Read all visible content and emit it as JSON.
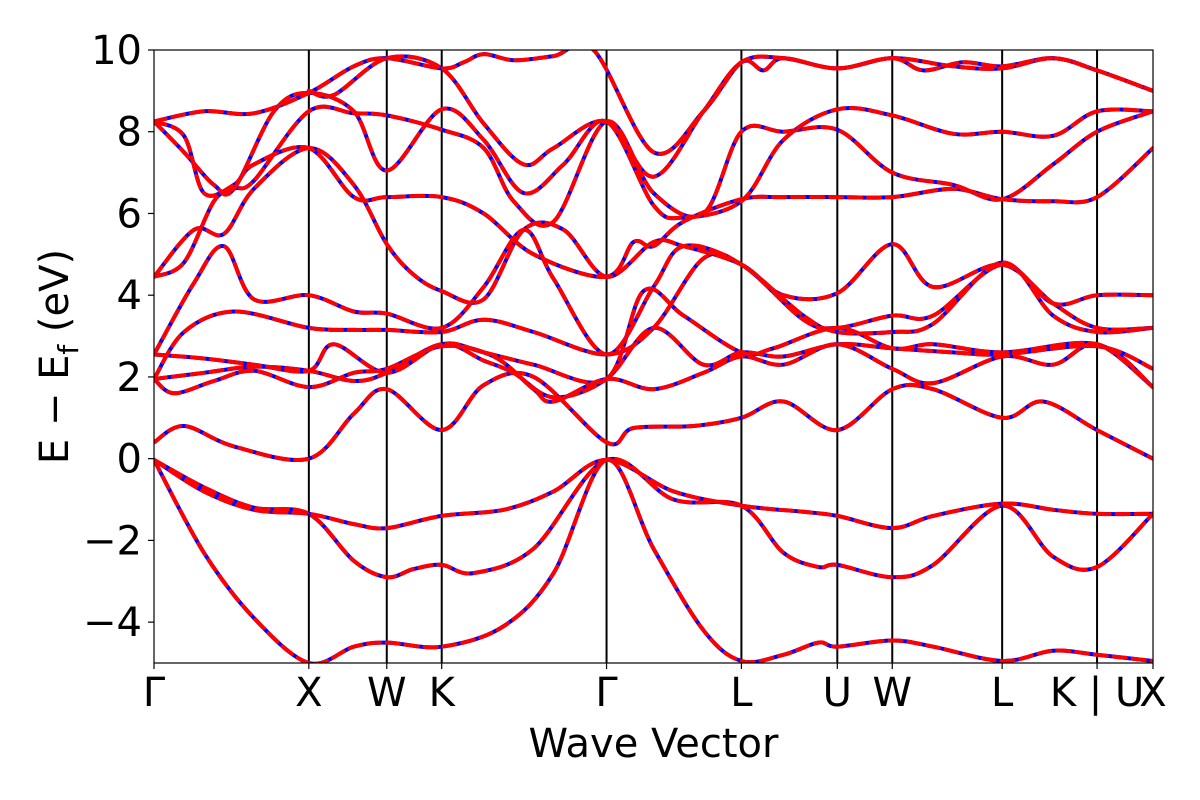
{
  "chart_data": {
    "type": "line",
    "title": "",
    "xlabel": "Wave Vector",
    "ylabel": "E − E",
    "ylabel_subscript": "f",
    "ylabel_unit": "(eV)",
    "ylim": [
      -5,
      10
    ],
    "xlim": [
      0,
      1
    ],
    "yticks": [
      {
        "value": -4,
        "label": "−4"
      },
      {
        "value": -2,
        "label": "−2"
      },
      {
        "value": 0,
        "label": "0"
      },
      {
        "value": 2,
        "label": "2"
      },
      {
        "value": 4,
        "label": "4"
      },
      {
        "value": 6,
        "label": "6"
      },
      {
        "value": 8,
        "label": "8"
      },
      {
        "value": 10,
        "label": "10"
      }
    ],
    "kpoints": [
      {
        "label": "Γ",
        "x": 0.0,
        "line": false
      },
      {
        "label": "X",
        "x": 0.155,
        "line": true
      },
      {
        "label": "W",
        "x": 0.233,
        "line": true
      },
      {
        "label": "K",
        "x": 0.288,
        "line": true
      },
      {
        "label": "Γ",
        "x": 0.453,
        "line": true
      },
      {
        "label": "L",
        "x": 0.588,
        "line": true
      },
      {
        "label": "U",
        "x": 0.684,
        "line": true
      },
      {
        "label": "W",
        "x": 0.739,
        "line": true
      },
      {
        "label": "L",
        "x": 0.849,
        "line": true
      },
      {
        "label": "K | U",
        "x": 0.944,
        "line": true
      },
      {
        "label": "X",
        "x": 1.0,
        "line": false
      }
    ],
    "series_styles": [
      {
        "name": "",
        "color": "#0000ff",
        "dash": "solid"
      },
      {
        "name": "",
        "color": "#ff0000",
        "dash": "dashed"
      }
    ],
    "bands": [
      [
        [
          0,
          -0.03
        ],
        [
          0.05,
          -2.3
        ],
        [
          0.1,
          -3.9
        ],
        [
          0.155,
          -5.0
        ],
        [
          0.2,
          -4.6
        ],
        [
          0.233,
          -4.5
        ],
        [
          0.288,
          -4.6
        ],
        [
          0.35,
          -4.1
        ],
        [
          0.4,
          -2.8
        ],
        [
          0.453,
          -0.03
        ],
        [
          0.5,
          -2.2
        ],
        [
          0.55,
          -4.2
        ],
        [
          0.588,
          -4.95
        ],
        [
          0.63,
          -4.8
        ],
        [
          0.665,
          -4.5
        ],
        [
          0.684,
          -4.6
        ],
        [
          0.739,
          -4.45
        ],
        [
          0.78,
          -4.6
        ],
        [
          0.849,
          -4.95
        ],
        [
          0.9,
          -4.7
        ],
        [
          0.944,
          -4.8
        ],
        [
          1.0,
          -4.95
        ]
      ],
      [
        [
          0,
          -0.03
        ],
        [
          0.05,
          -0.7
        ],
        [
          0.1,
          -1.2
        ],
        [
          0.155,
          -1.35
        ],
        [
          0.2,
          -2.5
        ],
        [
          0.233,
          -2.9
        ],
        [
          0.26,
          -2.7
        ],
        [
          0.288,
          -2.6
        ],
        [
          0.32,
          -2.8
        ],
        [
          0.38,
          -2.2
        ],
        [
          0.453,
          -0.03
        ],
        [
          0.52,
          -1.0
        ],
        [
          0.588,
          -1.15
        ],
        [
          0.63,
          -2.3
        ],
        [
          0.665,
          -2.65
        ],
        [
          0.684,
          -2.6
        ],
        [
          0.739,
          -2.9
        ],
        [
          0.78,
          -2.6
        ],
        [
          0.849,
          -1.15
        ],
        [
          0.9,
          -2.4
        ],
        [
          0.944,
          -2.65
        ],
        [
          1.0,
          -1.35
        ]
      ],
      [
        [
          0,
          -0.03
        ],
        [
          0.05,
          -0.8
        ],
        [
          0.1,
          -1.25
        ],
        [
          0.155,
          -1.35
        ],
        [
          0.2,
          -1.6
        ],
        [
          0.233,
          -1.7
        ],
        [
          0.288,
          -1.4
        ],
        [
          0.35,
          -1.25
        ],
        [
          0.4,
          -0.8
        ],
        [
          0.453,
          -0.03
        ],
        [
          0.52,
          -0.8
        ],
        [
          0.588,
          -1.15
        ],
        [
          0.65,
          -1.3
        ],
        [
          0.684,
          -1.4
        ],
        [
          0.739,
          -1.7
        ],
        [
          0.78,
          -1.4
        ],
        [
          0.849,
          -1.1
        ],
        [
          0.9,
          -1.25
        ],
        [
          0.944,
          -1.35
        ],
        [
          1.0,
          -1.35
        ]
      ],
      [
        [
          0,
          0.4
        ],
        [
          0.03,
          0.8
        ],
        [
          0.08,
          0.3
        ],
        [
          0.155,
          0.0
        ],
        [
          0.2,
          1.1
        ],
        [
          0.233,
          1.7
        ],
        [
          0.288,
          0.7
        ],
        [
          0.33,
          1.8
        ],
        [
          0.38,
          2.0
        ],
        [
          0.453,
          0.4
        ],
        [
          0.48,
          0.75
        ],
        [
          0.54,
          0.8
        ],
        [
          0.588,
          1.0
        ],
        [
          0.63,
          1.4
        ],
        [
          0.684,
          0.7
        ],
        [
          0.739,
          1.7
        ],
        [
          0.78,
          1.7
        ],
        [
          0.849,
          1.0
        ],
        [
          0.89,
          1.4
        ],
        [
          0.944,
          0.7
        ],
        [
          1.0,
          0.0
        ]
      ],
      [
        [
          0,
          1.95
        ],
        [
          0.02,
          1.6
        ],
        [
          0.06,
          1.9
        ],
        [
          0.1,
          2.15
        ],
        [
          0.155,
          1.75
        ],
        [
          0.2,
          2.1
        ],
        [
          0.233,
          2.2
        ],
        [
          0.288,
          2.75
        ],
        [
          0.34,
          2.5
        ],
        [
          0.38,
          1.7
        ],
        [
          0.4,
          1.4
        ],
        [
          0.453,
          1.95
        ],
        [
          0.5,
          1.7
        ],
        [
          0.55,
          2.1
        ],
        [
          0.588,
          2.5
        ],
        [
          0.63,
          2.3
        ],
        [
          0.684,
          2.8
        ],
        [
          0.739,
          2.2
        ],
        [
          0.78,
          1.85
        ],
        [
          0.849,
          2.5
        ],
        [
          0.9,
          2.3
        ],
        [
          0.944,
          2.8
        ],
        [
          1.0,
          1.75
        ]
      ],
      [
        [
          0,
          1.95
        ],
        [
          0.05,
          2.1
        ],
        [
          0.1,
          2.25
        ],
        [
          0.155,
          2.15
        ],
        [
          0.2,
          1.9
        ],
        [
          0.233,
          2.1
        ],
        [
          0.288,
          2.8
        ],
        [
          0.33,
          2.4
        ],
        [
          0.36,
          2.1
        ],
        [
          0.4,
          1.5
        ],
        [
          0.453,
          1.95
        ],
        [
          0.5,
          3.2
        ],
        [
          0.55,
          2.3
        ],
        [
          0.588,
          2.6
        ],
        [
          0.63,
          2.5
        ],
        [
          0.684,
          2.8
        ],
        [
          0.739,
          2.7
        ],
        [
          0.8,
          2.6
        ],
        [
          0.849,
          2.55
        ],
        [
          0.944,
          2.75
        ],
        [
          1.0,
          2.2
        ]
      ],
      [
        [
          0,
          2.55
        ],
        [
          0.05,
          2.45
        ],
        [
          0.1,
          2.3
        ],
        [
          0.155,
          2.15
        ],
        [
          0.18,
          2.8
        ],
        [
          0.233,
          2.1
        ],
        [
          0.288,
          2.8
        ],
        [
          0.33,
          2.6
        ],
        [
          0.38,
          2.3
        ],
        [
          0.453,
          1.95
        ],
        [
          0.49,
          4.1
        ],
        [
          0.53,
          3.5
        ],
        [
          0.588,
          2.6
        ],
        [
          0.62,
          2.7
        ],
        [
          0.684,
          3.2
        ],
        [
          0.739,
          2.7
        ],
        [
          0.78,
          2.8
        ],
        [
          0.849,
          2.6
        ],
        [
          0.944,
          2.8
        ],
        [
          1.0,
          1.75
        ]
      ],
      [
        [
          0,
          1.95
        ],
        [
          0.03,
          3.1
        ],
        [
          0.08,
          3.6
        ],
        [
          0.155,
          3.2
        ],
        [
          0.2,
          3.15
        ],
        [
          0.233,
          3.15
        ],
        [
          0.288,
          3.1
        ],
        [
          0.33,
          3.4
        ],
        [
          0.38,
          3.1
        ],
        [
          0.453,
          2.55
        ],
        [
          0.5,
          3.2
        ],
        [
          0.55,
          4.9
        ],
        [
          0.588,
          4.75
        ],
        [
          0.65,
          3.5
        ],
        [
          0.684,
          3.1
        ],
        [
          0.739,
          3.1
        ],
        [
          0.78,
          3.3
        ],
        [
          0.849,
          4.8
        ],
        [
          0.9,
          3.5
        ],
        [
          0.944,
          3.1
        ],
        [
          1.0,
          3.2
        ]
      ],
      [
        [
          0,
          2.55
        ],
        [
          0.04,
          4.3
        ],
        [
          0.07,
          5.2
        ],
        [
          0.1,
          3.9
        ],
        [
          0.155,
          4.0
        ],
        [
          0.2,
          3.6
        ],
        [
          0.233,
          3.55
        ],
        [
          0.288,
          3.2
        ],
        [
          0.33,
          4.2
        ],
        [
          0.37,
          5.6
        ],
        [
          0.4,
          4.4
        ],
        [
          0.453,
          2.55
        ],
        [
          0.5,
          4.2
        ],
        [
          0.53,
          5.2
        ],
        [
          0.588,
          4.75
        ],
        [
          0.65,
          3.4
        ],
        [
          0.684,
          3.2
        ],
        [
          0.739,
          3.5
        ],
        [
          0.78,
          3.5
        ],
        [
          0.849,
          4.75
        ],
        [
          0.9,
          3.8
        ],
        [
          0.944,
          4.0
        ],
        [
          1.0,
          4.0
        ]
      ],
      [
        [
          0,
          4.45
        ],
        [
          0.04,
          5.6
        ],
        [
          0.07,
          5.5
        ],
        [
          0.1,
          6.6
        ],
        [
          0.155,
          7.6
        ],
        [
          0.2,
          6.7
        ],
        [
          0.233,
          5.25
        ],
        [
          0.26,
          4.5
        ],
        [
          0.288,
          4.1
        ],
        [
          0.33,
          3.9
        ],
        [
          0.37,
          5.6
        ],
        [
          0.41,
          5.6
        ],
        [
          0.453,
          4.45
        ],
        [
          0.5,
          5.3
        ],
        [
          0.53,
          5.2
        ],
        [
          0.588,
          4.75
        ],
        [
          0.63,
          4.0
        ],
        [
          0.684,
          4.05
        ],
        [
          0.739,
          5.25
        ],
        [
          0.78,
          4.2
        ],
        [
          0.849,
          4.75
        ],
        [
          0.9,
          3.8
        ],
        [
          0.944,
          3.2
        ],
        [
          1.0,
          3.2
        ]
      ],
      [
        [
          0,
          8.25
        ],
        [
          0.03,
          7.9
        ],
        [
          0.05,
          6.5
        ],
        [
          0.08,
          6.7
        ],
        [
          0.1,
          7.2
        ],
        [
          0.155,
          7.6
        ],
        [
          0.2,
          6.4
        ],
        [
          0.233,
          6.4
        ],
        [
          0.288,
          6.4
        ],
        [
          0.33,
          6.0
        ],
        [
          0.38,
          5.0
        ],
        [
          0.453,
          4.45
        ],
        [
          0.48,
          5.3
        ],
        [
          0.5,
          5.2
        ],
        [
          0.53,
          5.8
        ],
        [
          0.588,
          6.35
        ],
        [
          0.63,
          6.4
        ],
        [
          0.684,
          6.4
        ],
        [
          0.739,
          6.4
        ],
        [
          0.8,
          6.6
        ],
        [
          0.849,
          6.35
        ],
        [
          0.9,
          6.3
        ],
        [
          0.944,
          6.4
        ],
        [
          1.0,
          7.6
        ]
      ],
      [
        [
          0,
          4.45
        ],
        [
          0.03,
          4.8
        ],
        [
          0.06,
          6.3
        ],
        [
          0.08,
          6.6
        ],
        [
          0.1,
          6.8
        ],
        [
          0.155,
          8.5
        ],
        [
          0.2,
          8.45
        ],
        [
          0.233,
          8.4
        ],
        [
          0.288,
          8.05
        ],
        [
          0.33,
          7.6
        ],
        [
          0.36,
          6.3
        ],
        [
          0.4,
          5.8
        ],
        [
          0.453,
          8.25
        ],
        [
          0.5,
          6.5
        ],
        [
          0.55,
          6.0
        ],
        [
          0.588,
          8.0
        ],
        [
          0.63,
          8.0
        ],
        [
          0.684,
          8.05
        ],
        [
          0.739,
          7.0
        ],
        [
          0.8,
          6.7
        ],
        [
          0.849,
          6.35
        ],
        [
          0.9,
          7.2
        ],
        [
          0.944,
          8.0
        ],
        [
          1.0,
          8.5
        ]
      ],
      [
        [
          0,
          8.25
        ],
        [
          0.03,
          7.5
        ],
        [
          0.06,
          6.7
        ],
        [
          0.08,
          6.6
        ],
        [
          0.12,
          8.5
        ],
        [
          0.155,
          8.95
        ],
        [
          0.2,
          8.5
        ],
        [
          0.233,
          7.05
        ],
        [
          0.288,
          8.55
        ],
        [
          0.33,
          7.8
        ],
        [
          0.37,
          6.5
        ],
        [
          0.41,
          7.2
        ],
        [
          0.453,
          8.25
        ],
        [
          0.5,
          6.2
        ],
        [
          0.53,
          5.9
        ],
        [
          0.588,
          6.3
        ],
        [
          0.63,
          7.8
        ],
        [
          0.684,
          8.55
        ],
        [
          0.739,
          8.4
        ],
        [
          0.8,
          7.95
        ],
        [
          0.849,
          8.0
        ],
        [
          0.9,
          7.9
        ],
        [
          0.944,
          8.5
        ],
        [
          1.0,
          8.5
        ]
      ],
      [
        [
          0,
          8.25
        ],
        [
          0.05,
          8.5
        ],
        [
          0.1,
          8.45
        ],
        [
          0.155,
          8.95
        ],
        [
          0.2,
          9.6
        ],
        [
          0.233,
          9.8
        ],
        [
          0.288,
          9.55
        ],
        [
          0.31,
          9.7
        ],
        [
          0.33,
          9.9
        ],
        [
          0.36,
          9.75
        ],
        [
          0.4,
          9.85
        ],
        [
          0.44,
          10.0
        ],
        [
          0.5,
          7.5
        ],
        [
          0.55,
          8.5
        ],
        [
          0.588,
          9.7
        ],
        [
          0.61,
          9.5
        ],
        [
          0.63,
          9.8
        ],
        [
          0.684,
          9.55
        ],
        [
          0.739,
          9.8
        ],
        [
          0.77,
          9.5
        ],
        [
          0.81,
          9.7
        ],
        [
          0.849,
          9.6
        ],
        [
          0.9,
          9.8
        ],
        [
          0.944,
          9.5
        ],
        [
          1.0,
          9.0
        ]
      ],
      [
        [
          0.155,
          9.0
        ],
        [
          0.18,
          8.9
        ],
        [
          0.233,
          9.8
        ],
        [
          0.288,
          9.55
        ],
        [
          0.33,
          8.2
        ],
        [
          0.37,
          7.2
        ],
        [
          0.4,
          7.6
        ],
        [
          0.453,
          8.25
        ],
        [
          0.5,
          6.9
        ],
        [
          0.55,
          8.5
        ],
        [
          0.588,
          9.7
        ],
        [
          0.63,
          9.8
        ],
        [
          0.684,
          9.55
        ],
        [
          0.739,
          9.8
        ],
        [
          0.8,
          9.6
        ],
        [
          0.849,
          9.55
        ],
        [
          0.9,
          9.8
        ],
        [
          0.944,
          9.5
        ],
        [
          1.0,
          9.0
        ]
      ]
    ]
  }
}
